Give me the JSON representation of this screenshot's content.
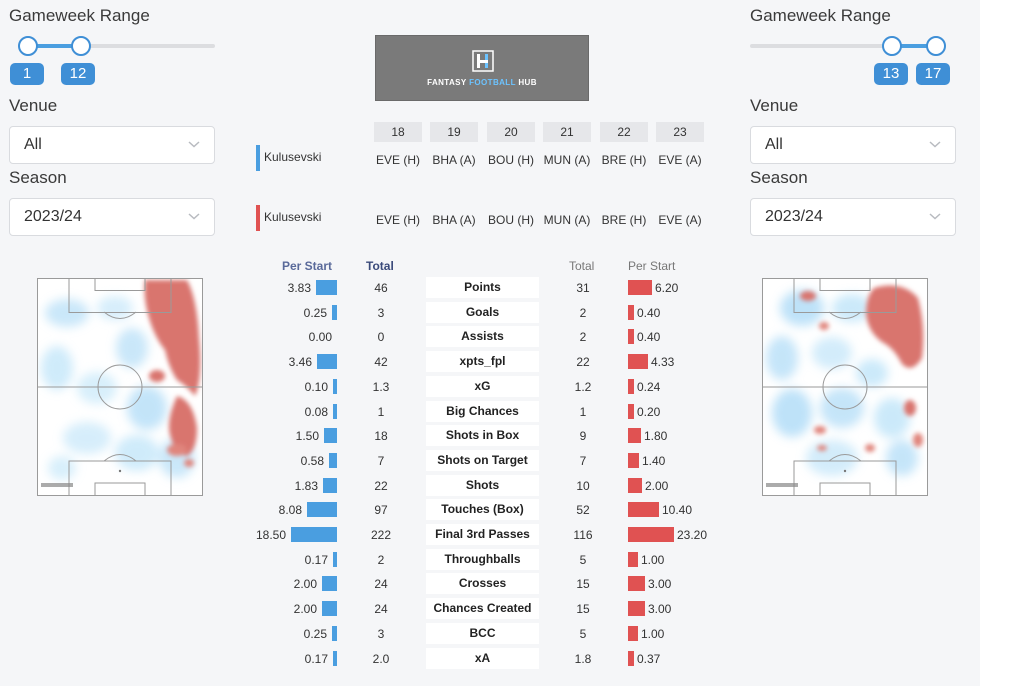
{
  "left_filters": {
    "range_label": "Gameweek Range",
    "range_from": "1",
    "range_to": "12",
    "venue_label": "Venue",
    "venue_value": "All",
    "season_label": "Season",
    "season_value": "2023/24",
    "slider_value": [
      1,
      12
    ],
    "slider_span": [
      1,
      38
    ]
  },
  "right_filters": {
    "range_label": "Gameweek Range",
    "range_from": "13",
    "range_to": "17",
    "venue_label": "Venue",
    "venue_value": "All",
    "season_label": "Season",
    "season_value": "2023/24",
    "slider_value": [
      13,
      17
    ],
    "slider_span": [
      1,
      17
    ]
  },
  "logo": {
    "text_a": "FANTASY ",
    "text_b": "FOOTBALL",
    "text_c": " HUB"
  },
  "gameweeks": [
    "18",
    "19",
    "20",
    "21",
    "22",
    "23"
  ],
  "players": [
    {
      "name": "Kulusevski",
      "color": "#4a9ee0",
      "fixtures": [
        "EVE (H)",
        "BHA (A)",
        "BOU (H)",
        "MUN (A)",
        "BRE (H)",
        "EVE (A)"
      ]
    },
    {
      "name": "Kulusevski",
      "color": "#e05252",
      "fixtures": [
        "EVE (H)",
        "BHA (A)",
        "BOU (H)",
        "MUN (A)",
        "BRE (H)",
        "EVE (A)"
      ]
    }
  ],
  "table_headers": {
    "left_per_start": "Per Start",
    "left_total": "Total",
    "right_total": "Total",
    "right_per_start": "Per Start"
  },
  "colors": {
    "blue": "#4a9ee0",
    "red": "#e05252"
  },
  "stats": [
    {
      "label": "Points",
      "l_ps": "3.83",
      "l_tot": "46",
      "r_tot": "31",
      "r_ps": "6.20"
    },
    {
      "label": "Goals",
      "l_ps": "0.25",
      "l_tot": "3",
      "r_tot": "2",
      "r_ps": "0.40"
    },
    {
      "label": "Assists",
      "l_ps": "0.00",
      "l_tot": "0",
      "r_tot": "2",
      "r_ps": "0.40"
    },
    {
      "label": "xpts_fpl",
      "l_ps": "3.46",
      "l_tot": "42",
      "r_tot": "22",
      "r_ps": "4.33"
    },
    {
      "label": "xG",
      "l_ps": "0.10",
      "l_tot": "1.3",
      "r_tot": "1.2",
      "r_ps": "0.24"
    },
    {
      "label": "Big Chances",
      "l_ps": "0.08",
      "l_tot": "1",
      "r_tot": "1",
      "r_ps": "0.20"
    },
    {
      "label": "Shots in Box",
      "l_ps": "1.50",
      "l_tot": "18",
      "r_tot": "9",
      "r_ps": "1.80"
    },
    {
      "label": "Shots on Target",
      "l_ps": "0.58",
      "l_tot": "7",
      "r_tot": "7",
      "r_ps": "1.40"
    },
    {
      "label": "Shots",
      "l_ps": "1.83",
      "l_tot": "22",
      "r_tot": "10",
      "r_ps": "2.00"
    },
    {
      "label": "Touches (Box)",
      "l_ps": "8.08",
      "l_tot": "97",
      "r_tot": "52",
      "r_ps": "10.40"
    },
    {
      "label": "Final 3rd Passes",
      "l_ps": "18.50",
      "l_tot": "222",
      "r_tot": "116",
      "r_ps": "23.20"
    },
    {
      "label": "Throughballs",
      "l_ps": "0.17",
      "l_tot": "2",
      "r_tot": "5",
      "r_ps": "1.00"
    },
    {
      "label": "Crosses",
      "l_ps": "2.00",
      "l_tot": "24",
      "r_tot": "15",
      "r_ps": "3.00"
    },
    {
      "label": "Chances Created",
      "l_ps": "2.00",
      "l_tot": "24",
      "r_tot": "15",
      "r_ps": "3.00"
    },
    {
      "label": "BCC",
      "l_ps": "0.25",
      "l_tot": "3",
      "r_tot": "5",
      "r_ps": "1.00"
    },
    {
      "label": "xA",
      "l_ps": "0.17",
      "l_tot": "2.0",
      "r_tot": "1.8",
      "r_ps": "0.37"
    }
  ]
}
